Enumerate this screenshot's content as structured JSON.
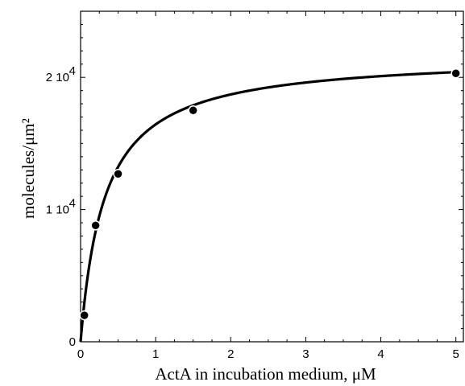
{
  "chart_data": {
    "type": "scatter",
    "xlabel": "ActA in incubation medium, μM",
    "ylabel": "molecules/μm²",
    "xlim": [
      0,
      5.1
    ],
    "ylim": [
      0,
      2.5
    ],
    "y_unit_note": "y values in units of 10^4 molecules/μm²",
    "x_ticks": [
      {
        "value": 0,
        "label": "0"
      },
      {
        "value": 1,
        "label": "1"
      },
      {
        "value": 2,
        "label": "2"
      },
      {
        "value": 3,
        "label": "3"
      },
      {
        "value": 4,
        "label": "4"
      },
      {
        "value": 5,
        "label": "5"
      }
    ],
    "y_ticks": [
      {
        "value": 0,
        "mantissa": "0",
        "exponent": ""
      },
      {
        "value": 1,
        "mantissa": "1 10",
        "exponent": "4"
      },
      {
        "value": 2,
        "mantissa": "2 10",
        "exponent": "4"
      }
    ],
    "series": [
      {
        "points": [
          {
            "x": 0.05,
            "y": 0.2
          },
          {
            "x": 0.2,
            "y": 0.88
          },
          {
            "x": 0.5,
            "y": 1.27
          },
          {
            "x": 1.5,
            "y": 1.75
          },
          {
            "x": 5.0,
            "y": 2.03
          }
        ]
      }
    ],
    "fit_curve": {
      "model": "saturation",
      "bmax": 2.17,
      "kd": 0.32
    },
    "grid": false,
    "legend": "none"
  }
}
